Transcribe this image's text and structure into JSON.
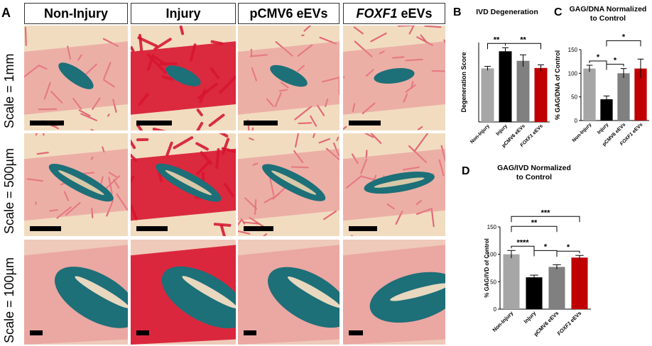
{
  "panel_a": {
    "letter": "A",
    "columns": [
      {
        "label": "Non-Injury"
      },
      {
        "label": "Injury"
      },
      {
        "label": "pCMV6 eEVs"
      },
      {
        "label": "FOXF1 eEVs",
        "italic_part": "FOXF1",
        "rest": " eEVs"
      }
    ],
    "rows": [
      {
        "scale_label": "Scale = 1mm"
      },
      {
        "scale_label": "Scale = 500µm"
      },
      {
        "scale_label": "Scale = 100µm"
      }
    ]
  },
  "colors": {
    "non_injury": "#a6a6a6",
    "injury": "#000000",
    "pcmv6": "#808080",
    "foxf1": "#c00000"
  },
  "chart_data": [
    {
      "panel": "B",
      "type": "bar",
      "title": "IVD Degeneration",
      "categories": [
        "Non-Injury",
        "Injury",
        "pCMV6 eEVs",
        "FOXF1 eEVs"
      ],
      "values": [
        13.5,
        17.8,
        15.4,
        13.6
      ],
      "errors": [
        0.5,
        0.9,
        1.5,
        0.8
      ],
      "ylabel": "Degeneration Score",
      "ylim": [
        0,
        20
      ],
      "yticks": [],
      "significance": [
        {
          "from": 0,
          "to": 1,
          "label": "**",
          "level": 1
        },
        {
          "from": 1,
          "to": 3,
          "label": "**",
          "level": 1
        }
      ]
    },
    {
      "panel": "C",
      "type": "bar",
      "title": "GAG/DNA Normalized to Control",
      "title_lines": [
        "GAG/DNA Normalized",
        "to Control"
      ],
      "categories": [
        "Non-Injury",
        "Injury",
        "pCMV6 eEVs",
        "FOXF1 eEVs"
      ],
      "values": [
        110,
        45,
        100,
        110
      ],
      "errors": [
        7,
        7,
        10,
        20
      ],
      "ylabel": "% GAG/DNA of Control",
      "ylim": [
        0,
        150
      ],
      "yticks": [
        0,
        50,
        100,
        150
      ],
      "significance": [
        {
          "from": 0,
          "to": 1,
          "label": "*",
          "level": 1
        },
        {
          "from": 1,
          "to": 2,
          "label": "*",
          "level": 1
        },
        {
          "from": 1,
          "to": 3,
          "label": "*",
          "level": 2
        }
      ]
    },
    {
      "panel": "D",
      "type": "bar",
      "title": "GAG/IVD Normalized to Control",
      "title_lines": [
        "GAG/IVD Normalized",
        "to Control"
      ],
      "categories": [
        "Non-Injury",
        "Injury",
        "pCMV6 eEVs",
        "FOXF1 eEVs"
      ],
      "values": [
        100,
        58,
        77,
        94
      ],
      "errors": [
        7,
        4,
        4,
        4
      ],
      "ylabel": "% GAG/IVD of Control",
      "ylim": [
        0,
        150
      ],
      "yticks": [
        0,
        50,
        100,
        150
      ],
      "significance": [
        {
          "from": 0,
          "to": 1,
          "label": "****",
          "level": 1
        },
        {
          "from": 1,
          "to": 2,
          "label": "*",
          "level": 2
        },
        {
          "from": 2,
          "to": 3,
          "label": "*",
          "level": 1
        },
        {
          "from": 0,
          "to": 2,
          "label": "**",
          "level": 3
        },
        {
          "from": 0,
          "to": 3,
          "label": "***",
          "level": 4
        }
      ]
    }
  ]
}
